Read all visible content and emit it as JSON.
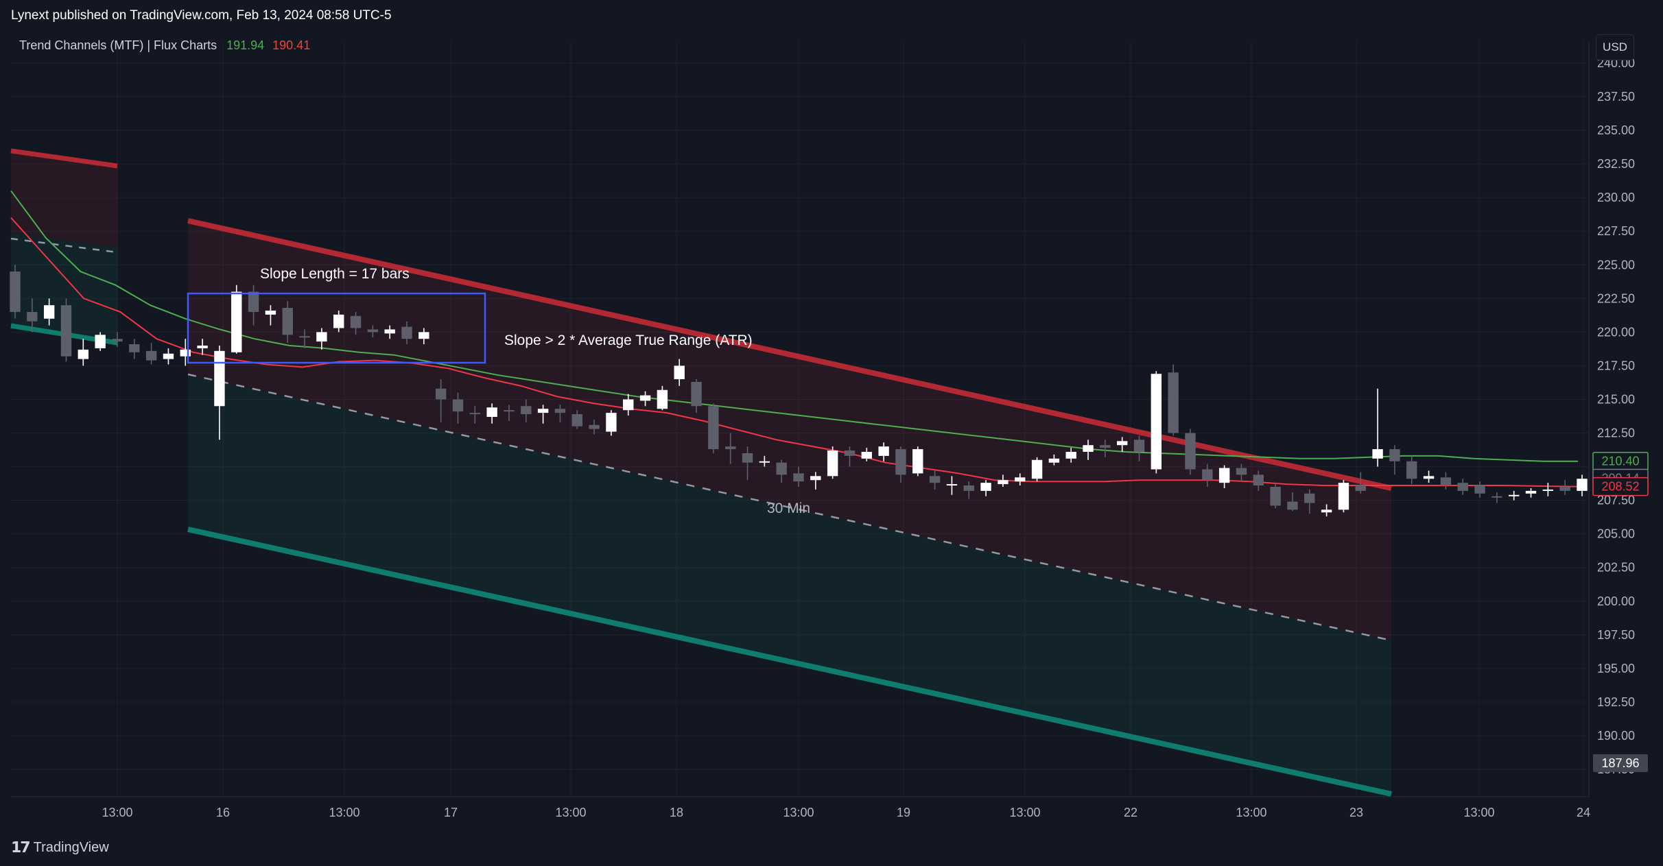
{
  "header": {
    "published": "Lynext published on TradingView.com, Feb 13, 2024 08:58 UTC-5",
    "indicator_name": "Trend Channels (MTF) | Flux Charts",
    "indicator_value_1": "191.94",
    "indicator_value_2": "190.41",
    "currency": "USD"
  },
  "footer": {
    "brand": "TradingView",
    "logo": "tv-logo-icon"
  },
  "annotations": {
    "slope_length": "Slope Length = 17 bars",
    "slope_condition": "Slope > 2 * Average True Range (ATR)",
    "timeframe": "30 Min"
  },
  "colors": {
    "background": "#131722",
    "up_candle": "#ffffff",
    "down_candle": "#5d606b",
    "channel_upper": "#b22833",
    "channel_lower": "#0f7d6e",
    "ma_green": "#4caf50",
    "ma_red": "#f23645",
    "blue_box": "#3d5afe"
  },
  "chart_data": {
    "type": "candlestick",
    "y_axis": {
      "ticks": [
        "187.50",
        "190.00",
        "192.50",
        "195.00",
        "197.50",
        "200.00",
        "202.50",
        "205.00",
        "207.50",
        "210.00",
        "212.50",
        "215.00",
        "217.50",
        "220.00",
        "222.50",
        "225.00",
        "227.50",
        "230.00",
        "232.50",
        "235.00",
        "237.50",
        "240.00"
      ],
      "range": [
        186.25,
        240.8
      ]
    },
    "x_axis": {
      "ticks": [
        "13:00",
        "16",
        "13:00",
        "17",
        "13:00",
        "18",
        "13:00",
        "19",
        "13:00",
        "22",
        "13:00",
        "23",
        "13:00",
        "24"
      ]
    },
    "price_labels": [
      {
        "value": "210.40",
        "color": "#4caf50"
      },
      {
        "value": "209.14",
        "color": "#787b86"
      },
      {
        "value": "208.52",
        "color": "#f23645"
      },
      {
        "value": "187.96",
        "color": "#787b86"
      }
    ],
    "candles": [
      [
        224.5,
        221.5,
        225,
        221
      ],
      [
        221.5,
        220.8,
        222.5,
        220
      ],
      [
        221,
        222,
        222.5,
        220.5
      ],
      [
        222,
        218.2,
        222.5,
        217.8
      ],
      [
        218,
        218.7,
        219.5,
        217.5
      ],
      [
        218.8,
        219.8,
        220,
        218.6
      ],
      [
        219.5,
        219.3,
        220,
        218.9
      ],
      [
        219.1,
        218.5,
        219.5,
        218
      ],
      [
        218.6,
        217.9,
        219.2,
        217.6
      ],
      [
        218,
        218.4,
        218.8,
        217.6
      ],
      [
        218.2,
        218.7,
        219.5,
        217.5
      ],
      [
        218.8,
        219,
        219.5,
        218.3
      ],
      [
        214.5,
        218.6,
        219,
        212
      ],
      [
        218.5,
        223,
        223.5,
        218.4
      ],
      [
        223,
        221.5,
        223.5,
        220.5
      ],
      [
        221.3,
        221.6,
        222,
        220.5
      ],
      [
        221.8,
        219.8,
        222.3,
        219.2
      ],
      [
        219.7,
        219.6,
        220.2,
        218.8
      ],
      [
        219.3,
        220,
        220.3,
        218.7
      ],
      [
        220.3,
        221.3,
        221.6,
        220
      ],
      [
        221.2,
        220.3,
        221.5,
        219.8
      ],
      [
        220.2,
        220,
        220.5,
        219.6
      ],
      [
        219.9,
        220.2,
        220.5,
        219.5
      ],
      [
        220.4,
        219.5,
        220.8,
        219.1
      ],
      [
        219.5,
        220,
        220.3,
        219.1
      ],
      [
        215.8,
        215,
        216.5,
        213.3
      ],
      [
        215,
        214.1,
        215.5,
        213.2
      ],
      [
        214,
        213.9,
        214.5,
        213.2
      ],
      [
        213.7,
        214.4,
        214.7,
        213.2
      ],
      [
        214.2,
        214.1,
        214.6,
        213.4
      ],
      [
        214.5,
        213.9,
        215,
        213.3
      ],
      [
        214,
        214.3,
        214.6,
        213.2
      ],
      [
        214.3,
        214,
        214.6,
        213.3
      ],
      [
        213.9,
        213,
        214.2,
        212.8
      ],
      [
        213.1,
        212.8,
        213.5,
        212.4
      ],
      [
        212.6,
        214,
        214.2,
        212.3
      ],
      [
        214.2,
        215,
        215.4,
        213.8
      ],
      [
        214.9,
        215.3,
        215.6,
        214.5
      ],
      [
        214.3,
        215.7,
        216,
        214.2
      ],
      [
        216.5,
        217.5,
        218,
        216
      ],
      [
        216.3,
        214.5,
        216.5,
        214
      ],
      [
        214.5,
        211.3,
        214.7,
        211
      ],
      [
        211.5,
        211.3,
        212.5,
        210.2
      ],
      [
        211,
        210.3,
        211.5,
        209
      ],
      [
        210.3,
        210.4,
        210.8,
        210
      ],
      [
        210.3,
        209.4,
        210.5,
        208.8
      ],
      [
        209.5,
        208.9,
        210,
        208.5
      ],
      [
        209,
        209.3,
        209.6,
        208.3
      ],
      [
        209.3,
        211.2,
        211.5,
        209.1
      ],
      [
        211.2,
        210.8,
        211.5,
        210
      ],
      [
        210.6,
        211.1,
        211.4,
        210.4
      ],
      [
        210.8,
        211.5,
        211.8,
        210.4
      ],
      [
        211.3,
        209.4,
        211.5,
        208.8
      ],
      [
        209.5,
        211.3,
        211.5,
        209.3
      ],
      [
        209.3,
        208.8,
        209.7,
        208.3
      ],
      [
        208.7,
        208.7,
        209.3,
        207.9
      ],
      [
        208.6,
        208.2,
        208.9,
        207.6
      ],
      [
        208.2,
        208.8,
        209,
        207.8
      ],
      [
        208.7,
        209,
        209.4,
        208.5
      ],
      [
        208.9,
        209.2,
        209.5,
        208.6
      ],
      [
        209.1,
        210.5,
        210.7,
        208.9
      ],
      [
        210.3,
        210.6,
        210.9,
        210.1
      ],
      [
        210.6,
        211.1,
        211.4,
        210.3
      ],
      [
        211.1,
        211.6,
        212,
        210.5
      ],
      [
        211.6,
        211.4,
        212,
        210.7
      ],
      [
        211.6,
        211.9,
        212.2,
        211.1
      ],
      [
        212,
        211.1,
        212.3,
        210.4
      ],
      [
        209.8,
        216.9,
        217.1,
        209.5
      ],
      [
        217,
        212.5,
        217.6,
        212.3
      ],
      [
        212.5,
        209.8,
        212.8,
        209.4
      ],
      [
        209.8,
        209,
        210.2,
        208.5
      ],
      [
        208.8,
        209.9,
        210.1,
        208.4
      ],
      [
        209.9,
        209.4,
        210.2,
        208.9
      ],
      [
        209.4,
        208.6,
        209.7,
        208.2
      ],
      [
        208.5,
        207.1,
        208.8,
        206.9
      ],
      [
        207.4,
        206.8,
        208.1,
        206.7
      ],
      [
        208,
        207.3,
        208.3,
        206.5
      ],
      [
        206.6,
        206.8,
        207.2,
        206.3
      ],
      [
        206.8,
        208.8,
        209,
        206.6
      ],
      [
        208.6,
        208.2,
        209.6,
        208
      ],
      [
        210.6,
        211.3,
        215.8,
        210
      ],
      [
        211.3,
        210.4,
        211.6,
        209.4
      ],
      [
        210.4,
        209.1,
        210.8,
        208.7
      ],
      [
        209.1,
        209.3,
        209.7,
        208.8
      ],
      [
        209.2,
        208.6,
        209.6,
        208.3
      ],
      [
        208.8,
        208.2,
        209.1,
        207.9
      ],
      [
        208.6,
        208,
        208.9,
        207.7
      ],
      [
        207.8,
        207.7,
        208.1,
        207.3
      ],
      [
        207.8,
        207.9,
        208.2,
        207.5
      ],
      [
        208,
        208.2,
        208.4,
        207.7
      ],
      [
        208.3,
        208.3,
        208.8,
        207.8
      ],
      [
        208.5,
        208.2,
        209,
        207.9
      ],
      [
        208.2,
        209.1,
        209.4,
        207.8
      ]
    ],
    "ma_green": [
      230.5,
      227,
      224.5,
      223.5,
      222,
      221,
      220.2,
      219.5,
      219,
      218.8,
      218.5,
      218.3,
      217.8,
      217.3,
      216.8,
      216.4,
      216,
      215.6,
      215.2,
      214.9,
      214.6,
      214.3,
      214,
      213.7,
      213.4,
      213.1,
      212.8,
      212.5,
      212.2,
      211.9,
      211.6,
      211.3,
      211.1,
      211,
      210.9,
      210.8,
      210.7,
      210.6,
      210.6,
      210.7,
      210.8,
      210.8,
      210.6,
      210.5,
      210.4,
      210.4
    ],
    "ma_red": [
      228.5,
      225.5,
      222.5,
      221.5,
      219.5,
      218.5,
      218,
      217.6,
      217.4,
      217.8,
      217.9,
      217.7,
      217.3,
      216.6,
      216,
      215.2,
      214.7,
      214.3,
      214,
      213.4,
      212.7,
      212,
      211.5,
      211,
      210.3,
      209.9,
      209.5,
      209,
      208.9,
      208.9,
      208.9,
      209,
      209,
      209,
      208.9,
      208.7,
      208.6,
      208.6,
      208.6,
      208.6,
      208.6,
      208.6,
      208.55,
      208.52
    ]
  }
}
